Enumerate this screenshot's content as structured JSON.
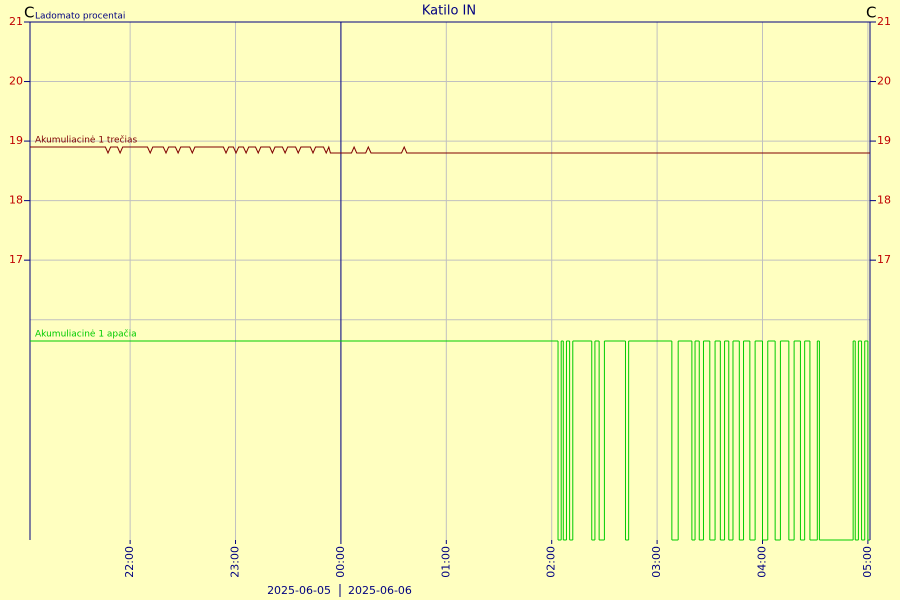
{
  "chart_data": [
    {
      "type": "line",
      "title": "Katilo IN",
      "subtitle": "Ladomato procentai",
      "ylabel": "C",
      "xlim": [
        21.05,
        29.02
      ],
      "xticks": [
        {
          "value": 22,
          "label": "22:00"
        },
        {
          "value": 23,
          "label": "23:00"
        },
        {
          "value": 24,
          "label": "00:00"
        },
        {
          "value": 25,
          "label": "01:00"
        },
        {
          "value": 26,
          "label": "02:00"
        },
        {
          "value": 27,
          "label": "03:00"
        },
        {
          "value": 28,
          "label": "04:00"
        },
        {
          "value": 29,
          "label": "05:00"
        }
      ],
      "ylim": [
        12.3,
        21
      ],
      "yticks": [
        {
          "value": 16,
          "label": null
        },
        17,
        18,
        19,
        20,
        21
      ],
      "date_labels": [
        "2025-06-05",
        "2025-06-06"
      ],
      "grid": true,
      "x": [
        21.05,
        21.765,
        21.79,
        21.815,
        21.88,
        21.905,
        21.93,
        22.165,
        22.19,
        22.215,
        22.315,
        22.34,
        22.365,
        22.43,
        22.455,
        22.48,
        22.565,
        22.59,
        22.615,
        22.885,
        22.91,
        22.935,
        22.98,
        23.005,
        23.03,
        23.075,
        23.1,
        23.125,
        23.19,
        23.215,
        23.24,
        23.325,
        23.35,
        23.375,
        23.445,
        23.47,
        23.495,
        23.57,
        23.595,
        23.62,
        23.71,
        23.735,
        23.76,
        23.835,
        23.86,
        23.885,
        23.9,
        24.1,
        24.125,
        24.15,
        24.235,
        24.26,
        24.285,
        24.575,
        24.6,
        24.625,
        29.02
      ],
      "series": [
        {
          "name": "Akumuliacinė 1 trečias",
          "color": "#800000",
          "values": [
            18.9,
            18.9,
            18.8,
            18.9,
            18.9,
            18.8,
            18.9,
            18.9,
            18.8,
            18.9,
            18.9,
            18.8,
            18.9,
            18.9,
            18.8,
            18.9,
            18.9,
            18.8,
            18.9,
            18.9,
            18.8,
            18.9,
            18.9,
            18.8,
            18.9,
            18.9,
            18.8,
            18.9,
            18.9,
            18.8,
            18.9,
            18.9,
            18.8,
            18.9,
            18.9,
            18.8,
            18.9,
            18.9,
            18.8,
            18.9,
            18.9,
            18.8,
            18.9,
            18.9,
            18.8,
            18.9,
            18.8,
            18.8,
            18.9,
            18.8,
            18.8,
            18.9,
            18.8,
            18.8,
            18.9,
            18.8,
            18.8
          ]
        }
      ]
    },
    {
      "type": "step",
      "ylim": [
        0,
        1
      ],
      "x": [
        21.05,
        26.06,
        26.09,
        26.11,
        26.14,
        26.17,
        26.2,
        26.38,
        26.41,
        26.45,
        26.5,
        26.7,
        26.73,
        27.14,
        27.2,
        27.33,
        27.36,
        27.4,
        27.44,
        27.5,
        27.55,
        27.6,
        27.64,
        27.68,
        27.72,
        27.78,
        27.82,
        27.88,
        27.93,
        28.0,
        28.05,
        28.12,
        28.17,
        28.25,
        28.3,
        28.36,
        28.4,
        28.45,
        28.52,
        28.54,
        28.86,
        28.88,
        28.91,
        28.94,
        28.97,
        29.0
      ],
      "series": [
        {
          "name": "Akumuliacinė 1 apačia",
          "color": "#00cc00",
          "values": [
            1,
            0,
            1,
            0,
            1,
            0,
            1,
            0,
            1,
            0,
            1,
            0,
            1,
            0,
            1,
            0,
            1,
            0,
            1,
            0,
            1,
            0,
            1,
            0,
            1,
            0,
            1,
            0,
            1,
            0,
            1,
            0,
            1,
            0,
            1,
            0,
            1,
            0,
            1,
            0,
            1,
            0,
            1,
            0,
            1,
            0
          ]
        }
      ]
    }
  ]
}
